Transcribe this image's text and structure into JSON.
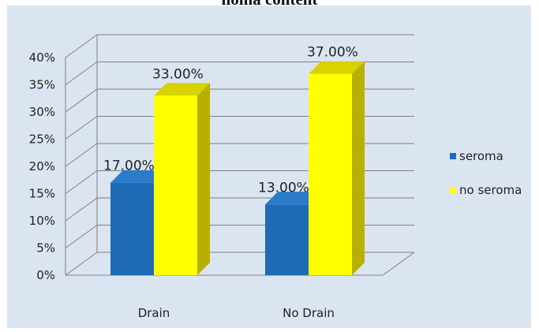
{
  "header": {
    "cropped_title": "noma content"
  },
  "colors": {
    "background": "#dbe5f1",
    "gridline": "#7f7f7f",
    "seroma_front": "#1f6ab4",
    "seroma_side": "#154d86",
    "seroma_top": "#2a7bc9",
    "no_seroma_front": "#ffff00",
    "no_seroma_side": "#b8b000",
    "no_seroma_top": "#d8d200"
  },
  "chart_data": {
    "type": "bar",
    "style": "3d-clustered-column",
    "title": "",
    "xlabel": "",
    "ylabel": "",
    "categories": [
      "Drain",
      "No Drain"
    ],
    "series": [
      {
        "name": "seroma",
        "values": [
          17,
          13
        ],
        "labels": [
          "17.00%",
          "13.00%"
        ]
      },
      {
        "name": "no seroma",
        "values": [
          33,
          37
        ],
        "labels": [
          "33.00%",
          "37.00%"
        ]
      }
    ],
    "ylim": [
      0,
      40
    ],
    "ytick_step": 5,
    "y_ticks": [
      "0%",
      "5%",
      "10%",
      "15%",
      "20%",
      "25%",
      "30%",
      "35%",
      "40%"
    ],
    "grid": true,
    "legend_position": "right"
  }
}
